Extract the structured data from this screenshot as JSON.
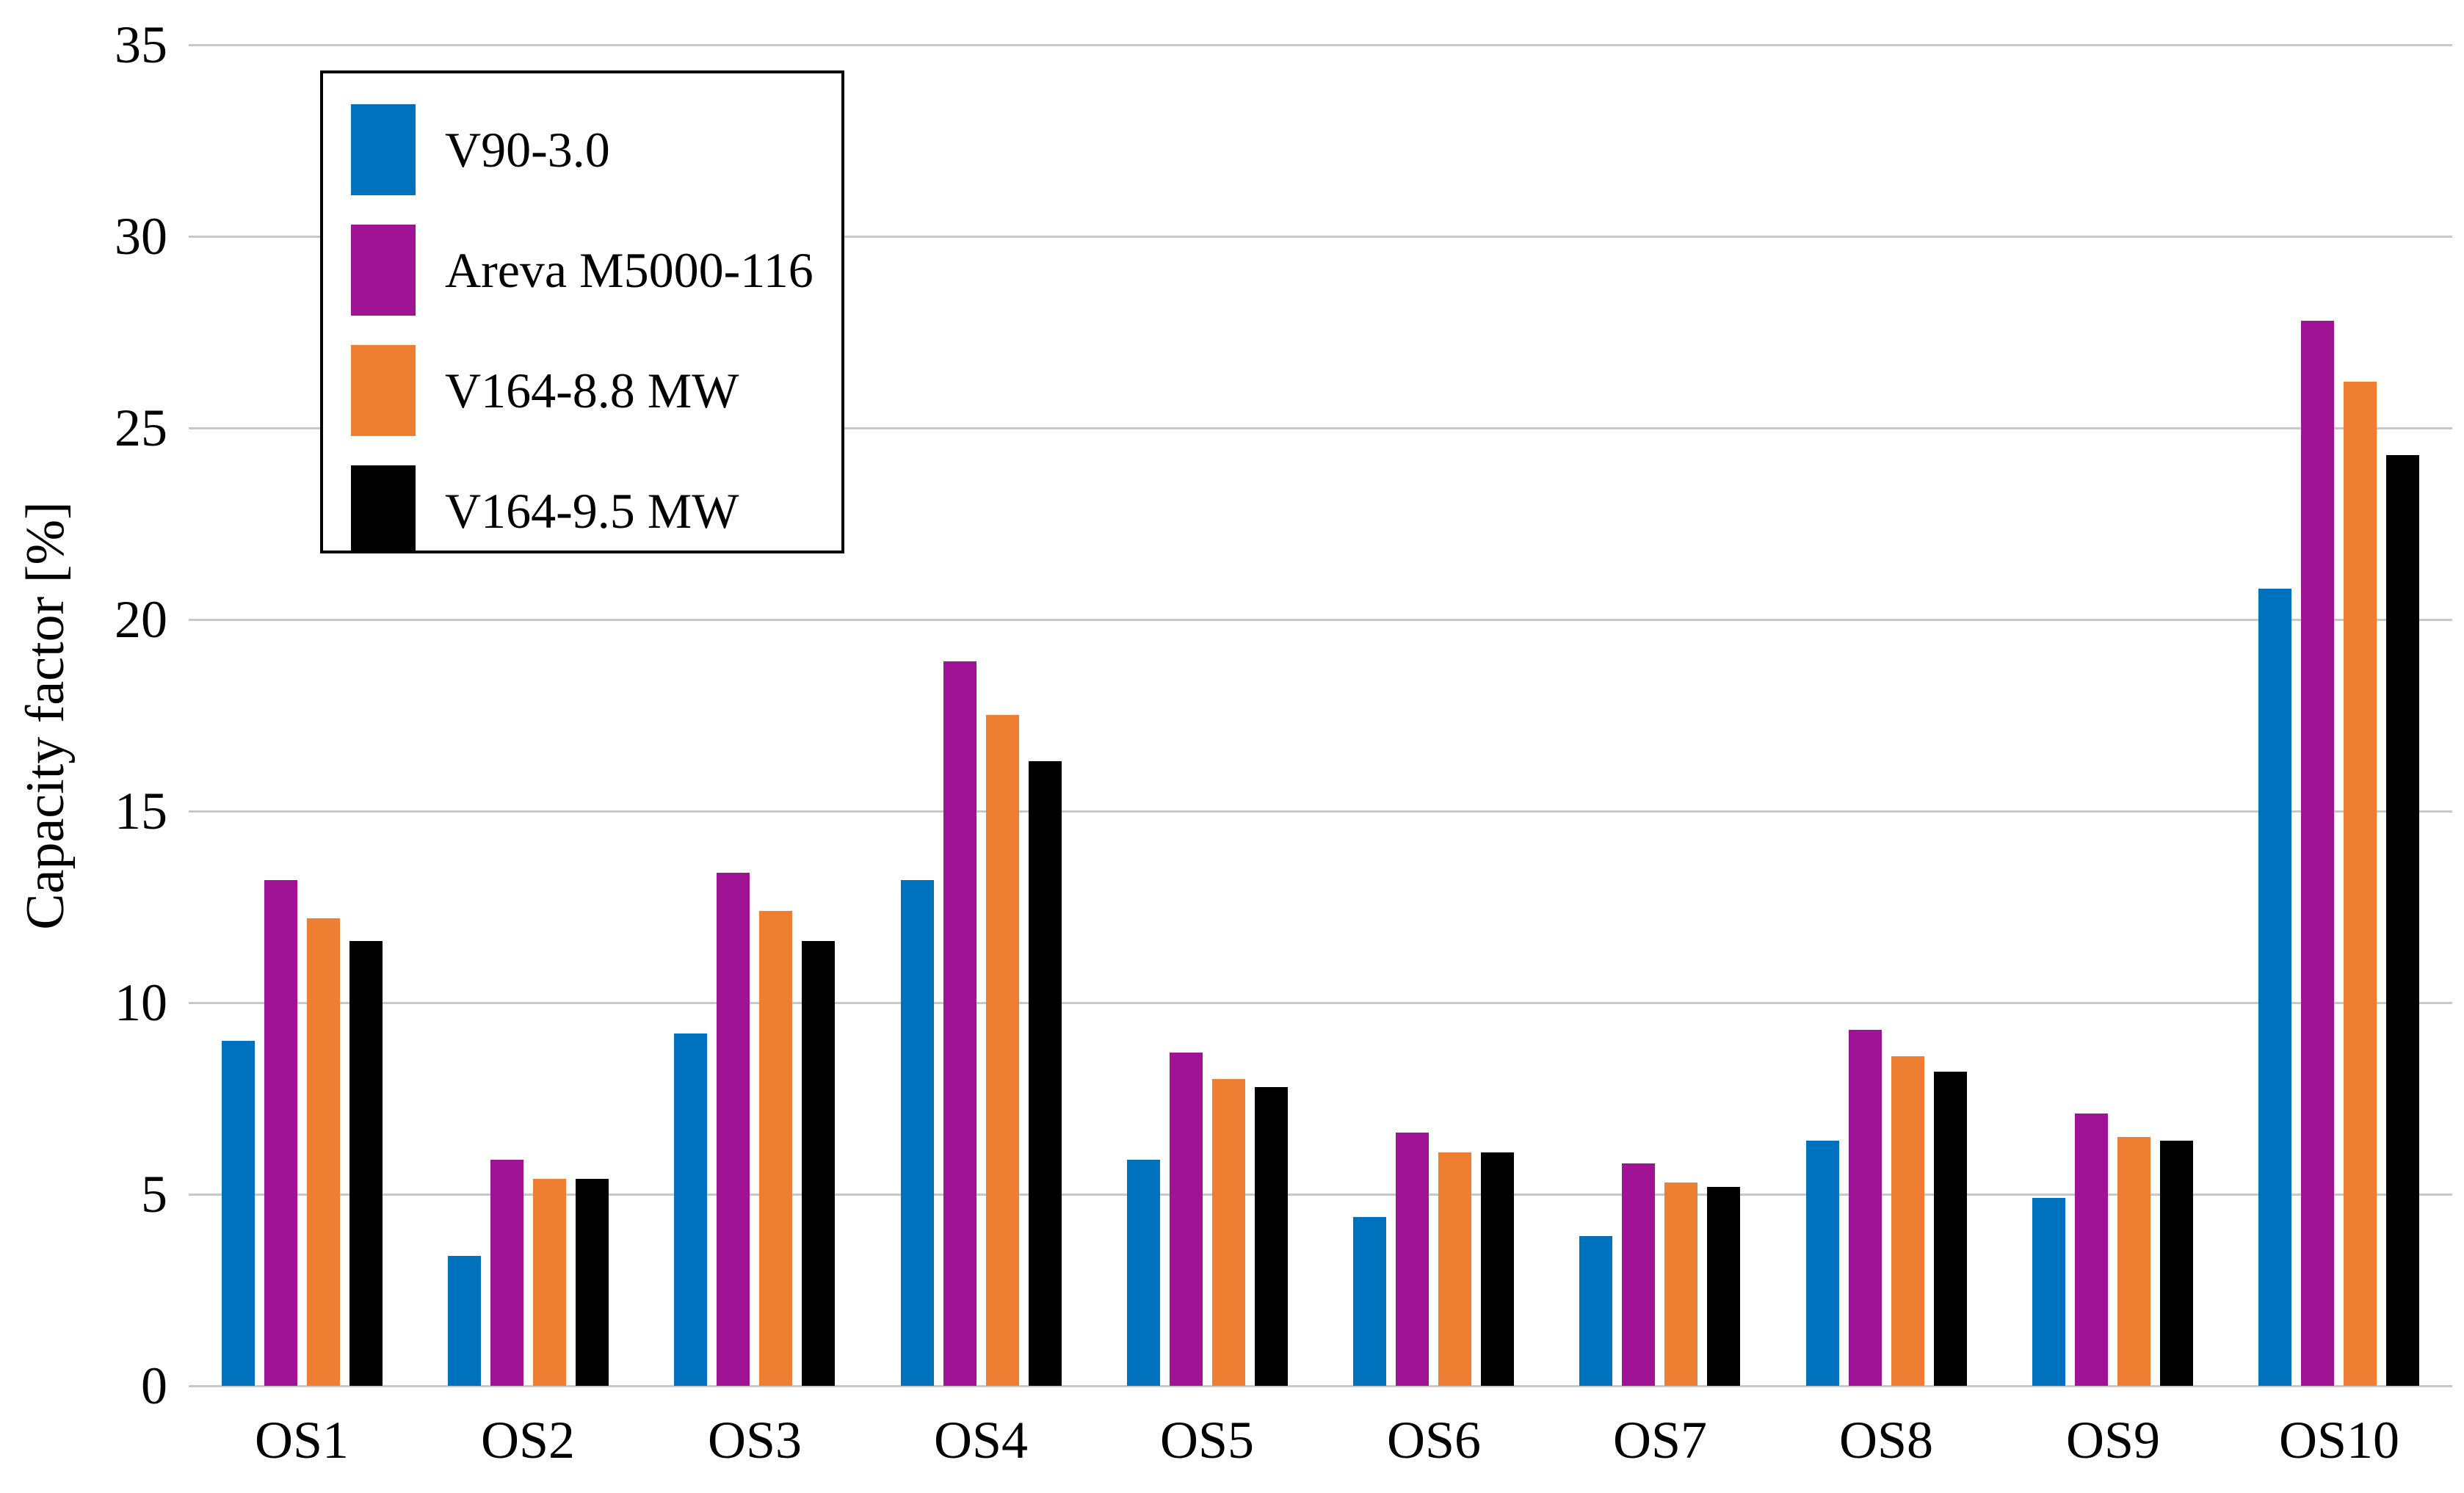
{
  "figure": {
    "background_color": "#FFFFFF",
    "grid_color": "#C8C8C8",
    "text_color": "#000000"
  },
  "chart_data": {
    "type": "bar",
    "title": "",
    "xlabel": "",
    "ylabel": "Capacity factor [%]",
    "ylim": [
      0,
      35
    ],
    "yticks": [
      0,
      5,
      10,
      15,
      20,
      25,
      30,
      35
    ],
    "grid": true,
    "legend_position": "top-left",
    "categories": [
      "OS1",
      "OS2",
      "OS3",
      "OS4",
      "OS5",
      "OS6",
      "OS7",
      "OS8",
      "OS9",
      "OS10"
    ],
    "series": [
      {
        "name": "V90-3.0",
        "color": "#0072BD",
        "values": [
          9.0,
          3.4,
          9.2,
          13.2,
          5.9,
          4.4,
          3.9,
          6.4,
          4.9,
          20.8
        ]
      },
      {
        "name": "Areva M5000-116",
        "color": "#A01395",
        "values": [
          13.2,
          5.9,
          13.4,
          18.9,
          8.7,
          6.6,
          5.8,
          9.3,
          7.1,
          27.8
        ]
      },
      {
        "name": "V164-8.8 MW",
        "color": "#EE7E32",
        "values": [
          12.2,
          5.4,
          12.4,
          17.5,
          8.0,
          6.1,
          5.3,
          8.6,
          6.5,
          26.2
        ]
      },
      {
        "name": "V164-9.5 MW",
        "color": "#000000",
        "values": [
          11.6,
          5.4,
          11.6,
          16.3,
          7.8,
          6.1,
          5.2,
          8.2,
          6.4,
          24.3
        ]
      }
    ]
  }
}
